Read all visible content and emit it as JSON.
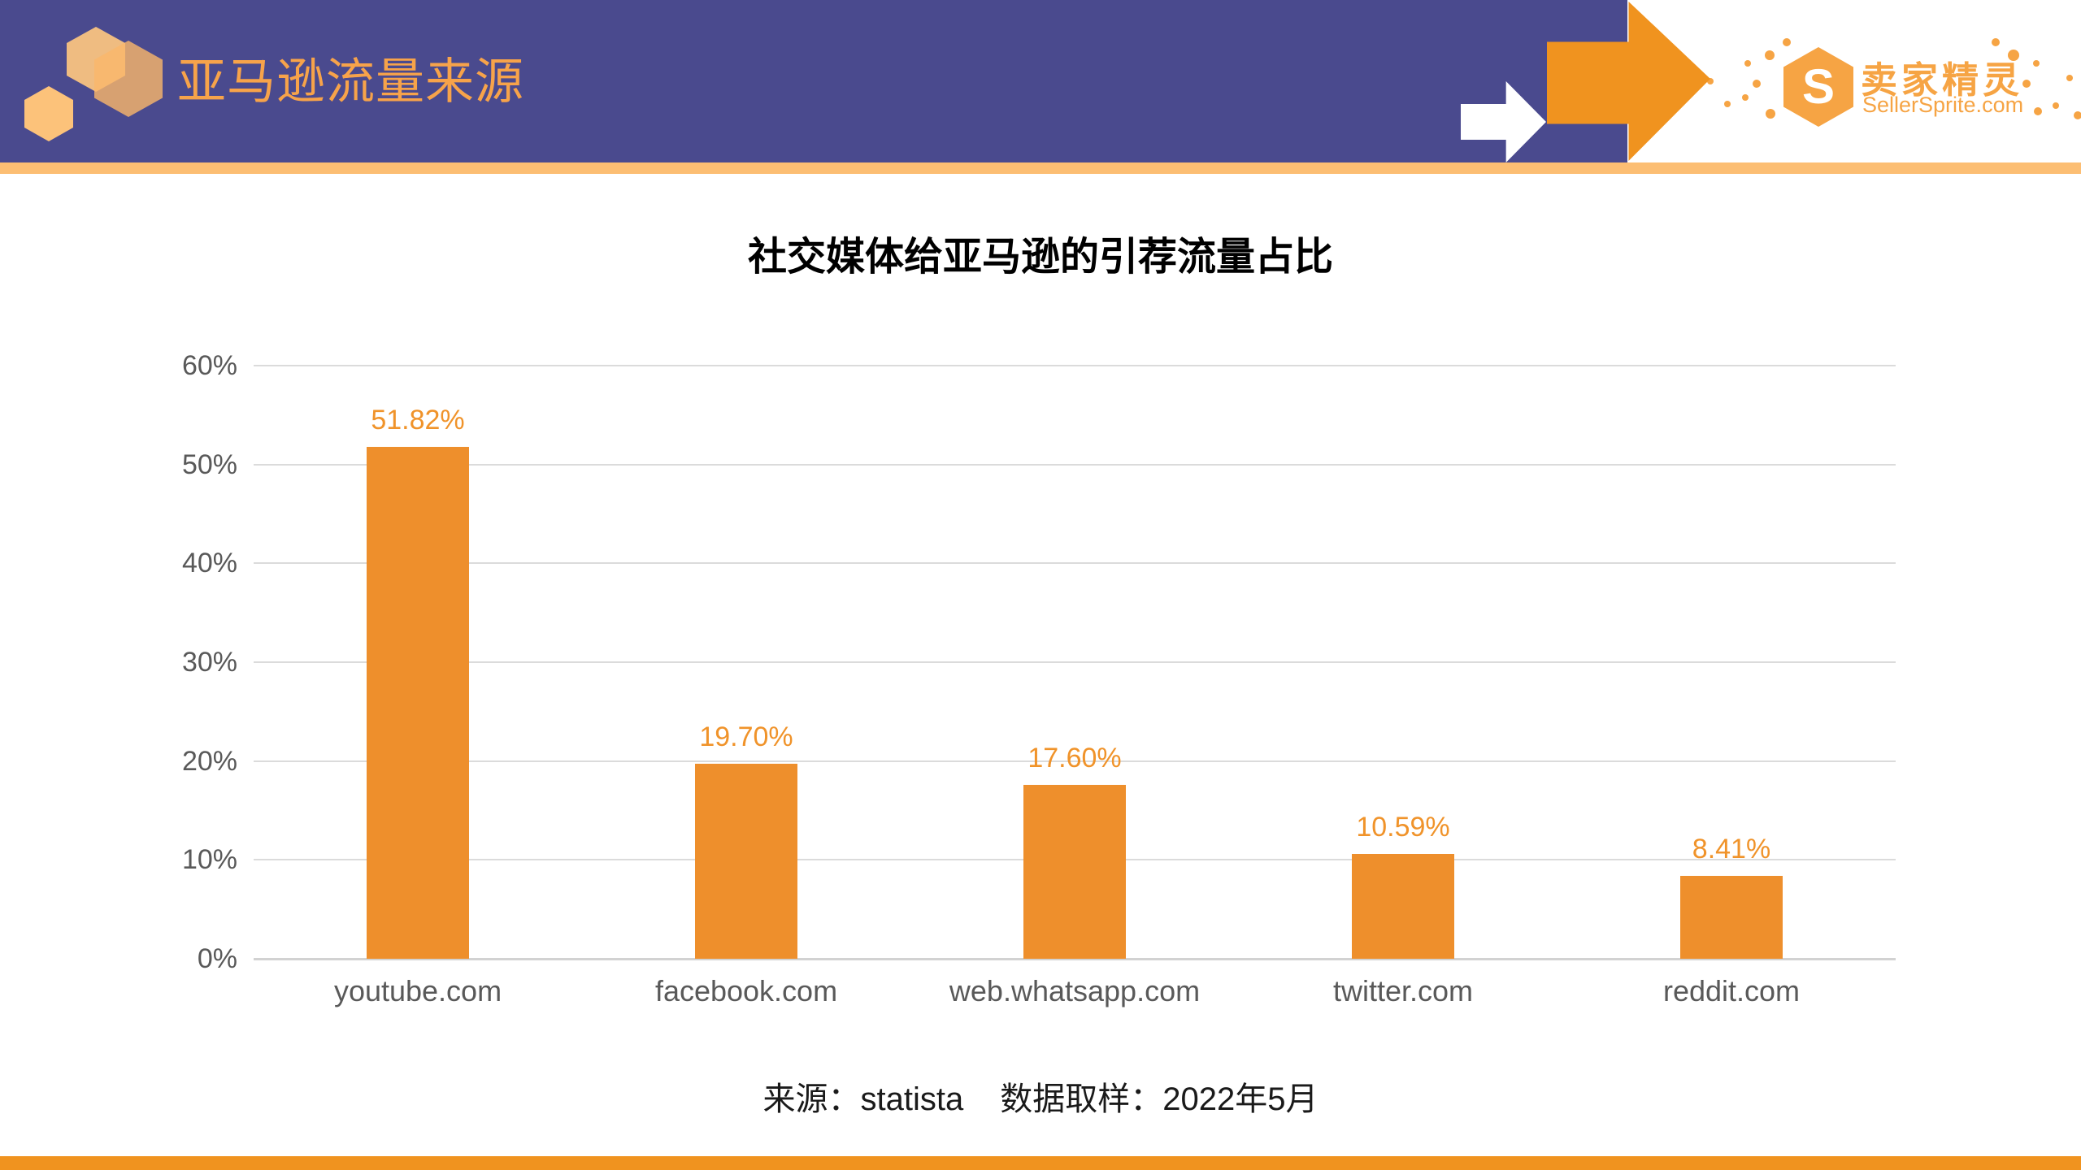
{
  "header": {
    "brand_title": "亚马逊流量来源",
    "sellersprite": {
      "monogram": "S",
      "name_cn": "卖家精灵",
      "name_en": "SellerSprite.com"
    }
  },
  "chart_data": {
    "type": "bar",
    "title": "社交媒体给亚马逊的引荐流量占比",
    "categories": [
      "youtube.com",
      "facebook.com",
      "web.whatsapp.com",
      "twitter.com",
      "reddit.com"
    ],
    "values": [
      51.82,
      19.7,
      17.6,
      10.59,
      8.41
    ],
    "value_labels": [
      "51.82%",
      "19.70%",
      "17.60%",
      "10.59%",
      "8.41%"
    ],
    "y_tick_labels": [
      "60%",
      "50%",
      "40%",
      "30%",
      "20%",
      "10%",
      "0%"
    ],
    "ylim": [
      0,
      60
    ],
    "xlabel": "",
    "ylabel": "",
    "grid": true,
    "legend_position": "none",
    "bar_count": 5
  },
  "footer": {
    "source": "来源：statista",
    "sampling": "数据取样：2022年5月"
  },
  "colors": {
    "header_purple": "#4A4A8E",
    "accent_orange": "#F0931F",
    "light_orange": "#FCBE73",
    "bar_orange": "#EE8F2C",
    "value_label_orange": "#F0932A",
    "logo_orange": "#F6A444",
    "axis_label_gray": "#595959",
    "gridline_gray": "#DBDBDB"
  }
}
